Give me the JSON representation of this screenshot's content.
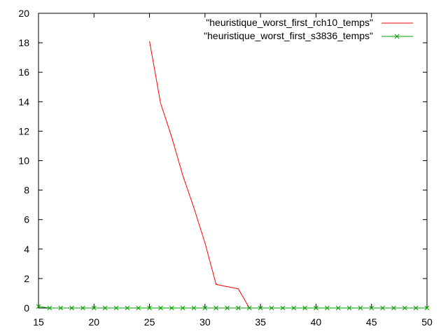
{
  "chart_data": {
    "type": "line",
    "title": "",
    "xlabel": "",
    "ylabel": "",
    "xlim": [
      15,
      50
    ],
    "ylim": [
      0,
      20
    ],
    "x_ticks": [
      "15",
      "20",
      "25",
      "30",
      "35",
      "40",
      "45",
      "50"
    ],
    "y_ticks": [
      "0",
      "2",
      "4",
      "6",
      "8",
      "10",
      "12",
      "14",
      "16",
      "18",
      "20"
    ],
    "grid": false,
    "legend_position": "top-right",
    "series": [
      {
        "name": "\"heuristique_worst_first_rch10_temps\"",
        "color": "#ff0000",
        "marker": "none",
        "x": [
          25,
          26,
          27,
          28,
          29,
          30,
          31,
          32,
          33,
          34,
          35,
          36,
          37,
          38
        ],
        "y": [
          18.1,
          13.9,
          11.6,
          9.0,
          6.8,
          4.4,
          1.6,
          1.45,
          1.3,
          0.0,
          0.0,
          0.0,
          0.0,
          0.0
        ]
      },
      {
        "name": "\"heuristique_worst_first_s3836_temps\"",
        "color": "#00a000",
        "marker": "x",
        "x": [
          15,
          16,
          17,
          18,
          19,
          20,
          21,
          22,
          23,
          24,
          25,
          26,
          27,
          28,
          29,
          30,
          31,
          32,
          33,
          34,
          35,
          36,
          37,
          38,
          39,
          40,
          41,
          42,
          43,
          44,
          45,
          46,
          47,
          48,
          49,
          50
        ],
        "y": [
          0.1,
          0.0,
          0.0,
          0.0,
          0.0,
          0.0,
          0.0,
          0.0,
          0.0,
          0.0,
          0.0,
          0.0,
          0.0,
          0.0,
          0.0,
          0.0,
          0.0,
          0.0,
          0.0,
          0.0,
          0.0,
          0.0,
          0.0,
          0.0,
          0.0,
          0.0,
          0.0,
          0.0,
          0.0,
          0.0,
          0.0,
          0.0,
          0.0,
          0.0,
          0.0,
          0.0
        ]
      }
    ]
  }
}
